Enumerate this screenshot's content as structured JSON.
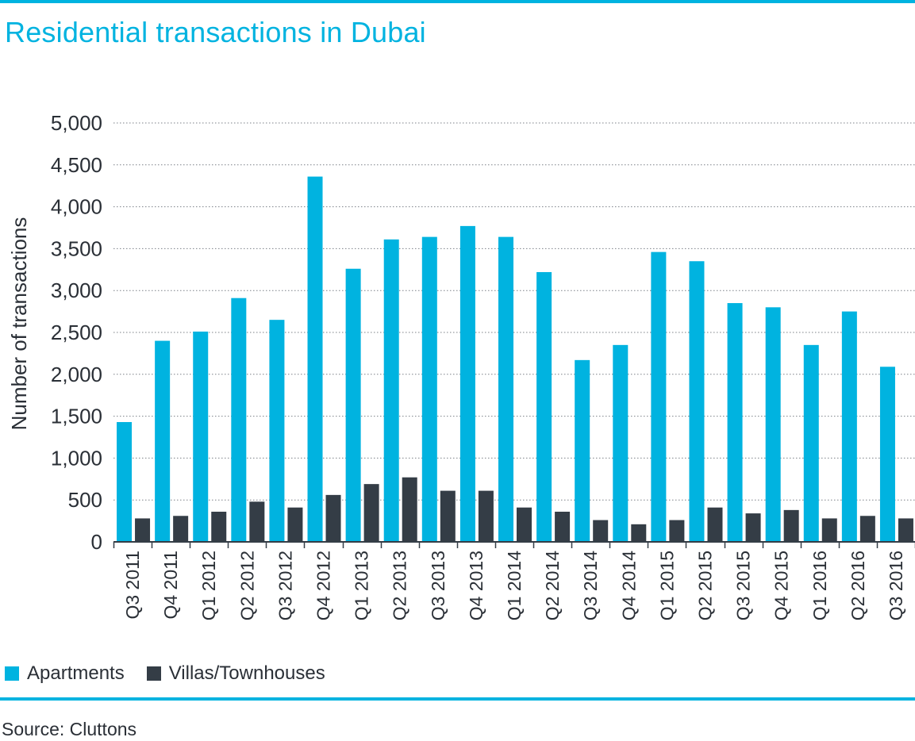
{
  "title": "Residential transactions in Dubai",
  "source": "Source: Cluttons",
  "colors": {
    "apartments": "#00b3e0",
    "villas": "#343d46",
    "accent_rule": "#00b3e0"
  },
  "legend": [
    {
      "label": "Apartments",
      "color": "#00b3e0"
    },
    {
      "label": "Villas/Townhouses",
      "color": "#343d46"
    }
  ],
  "chart_data": {
    "type": "bar",
    "title": "Residential transactions in Dubai",
    "xlabel": "",
    "ylabel": "Number of transactions",
    "ylim": [
      0,
      5000
    ],
    "yticks": [
      0,
      500,
      1000,
      1500,
      2000,
      2500,
      3000,
      3500,
      4000,
      4500,
      5000
    ],
    "ytick_labels": [
      "0",
      "500",
      "1,000",
      "1,500",
      "2,000",
      "2,500",
      "3,000",
      "3,500",
      "4,000",
      "4,500",
      "5,000"
    ],
    "grid": "horizontal dotted",
    "legend_position": "bottom-left",
    "categories": [
      "Q3 2011",
      "Q4 2011",
      "Q1 2012",
      "Q2 2012",
      "Q3 2012",
      "Q4 2012",
      "Q1 2013",
      "Q2 2013",
      "Q3 2013",
      "Q4 2013",
      "Q1 2014",
      "Q2 2014",
      "Q3 2014",
      "Q4 2014",
      "Q1 2015",
      "Q2 2015",
      "Q3 2015",
      "Q4 2015",
      "Q1 2016",
      "Q2 2016",
      "Q3 2016"
    ],
    "series": [
      {
        "name": "Apartments",
        "color": "#00b3e0",
        "values": [
          1430,
          2400,
          2510,
          2910,
          2650,
          4360,
          3260,
          3610,
          3640,
          3770,
          3640,
          3220,
          2170,
          2350,
          3460,
          3350,
          2850,
          2800,
          2350,
          2750,
          2090
        ]
      },
      {
        "name": "Villas/Townhouses",
        "color": "#343d46",
        "values": [
          280,
          310,
          360,
          480,
          410,
          560,
          690,
          770,
          610,
          610,
          410,
          360,
          260,
          210,
          260,
          410,
          340,
          380,
          280,
          310,
          280
        ]
      }
    ]
  }
}
